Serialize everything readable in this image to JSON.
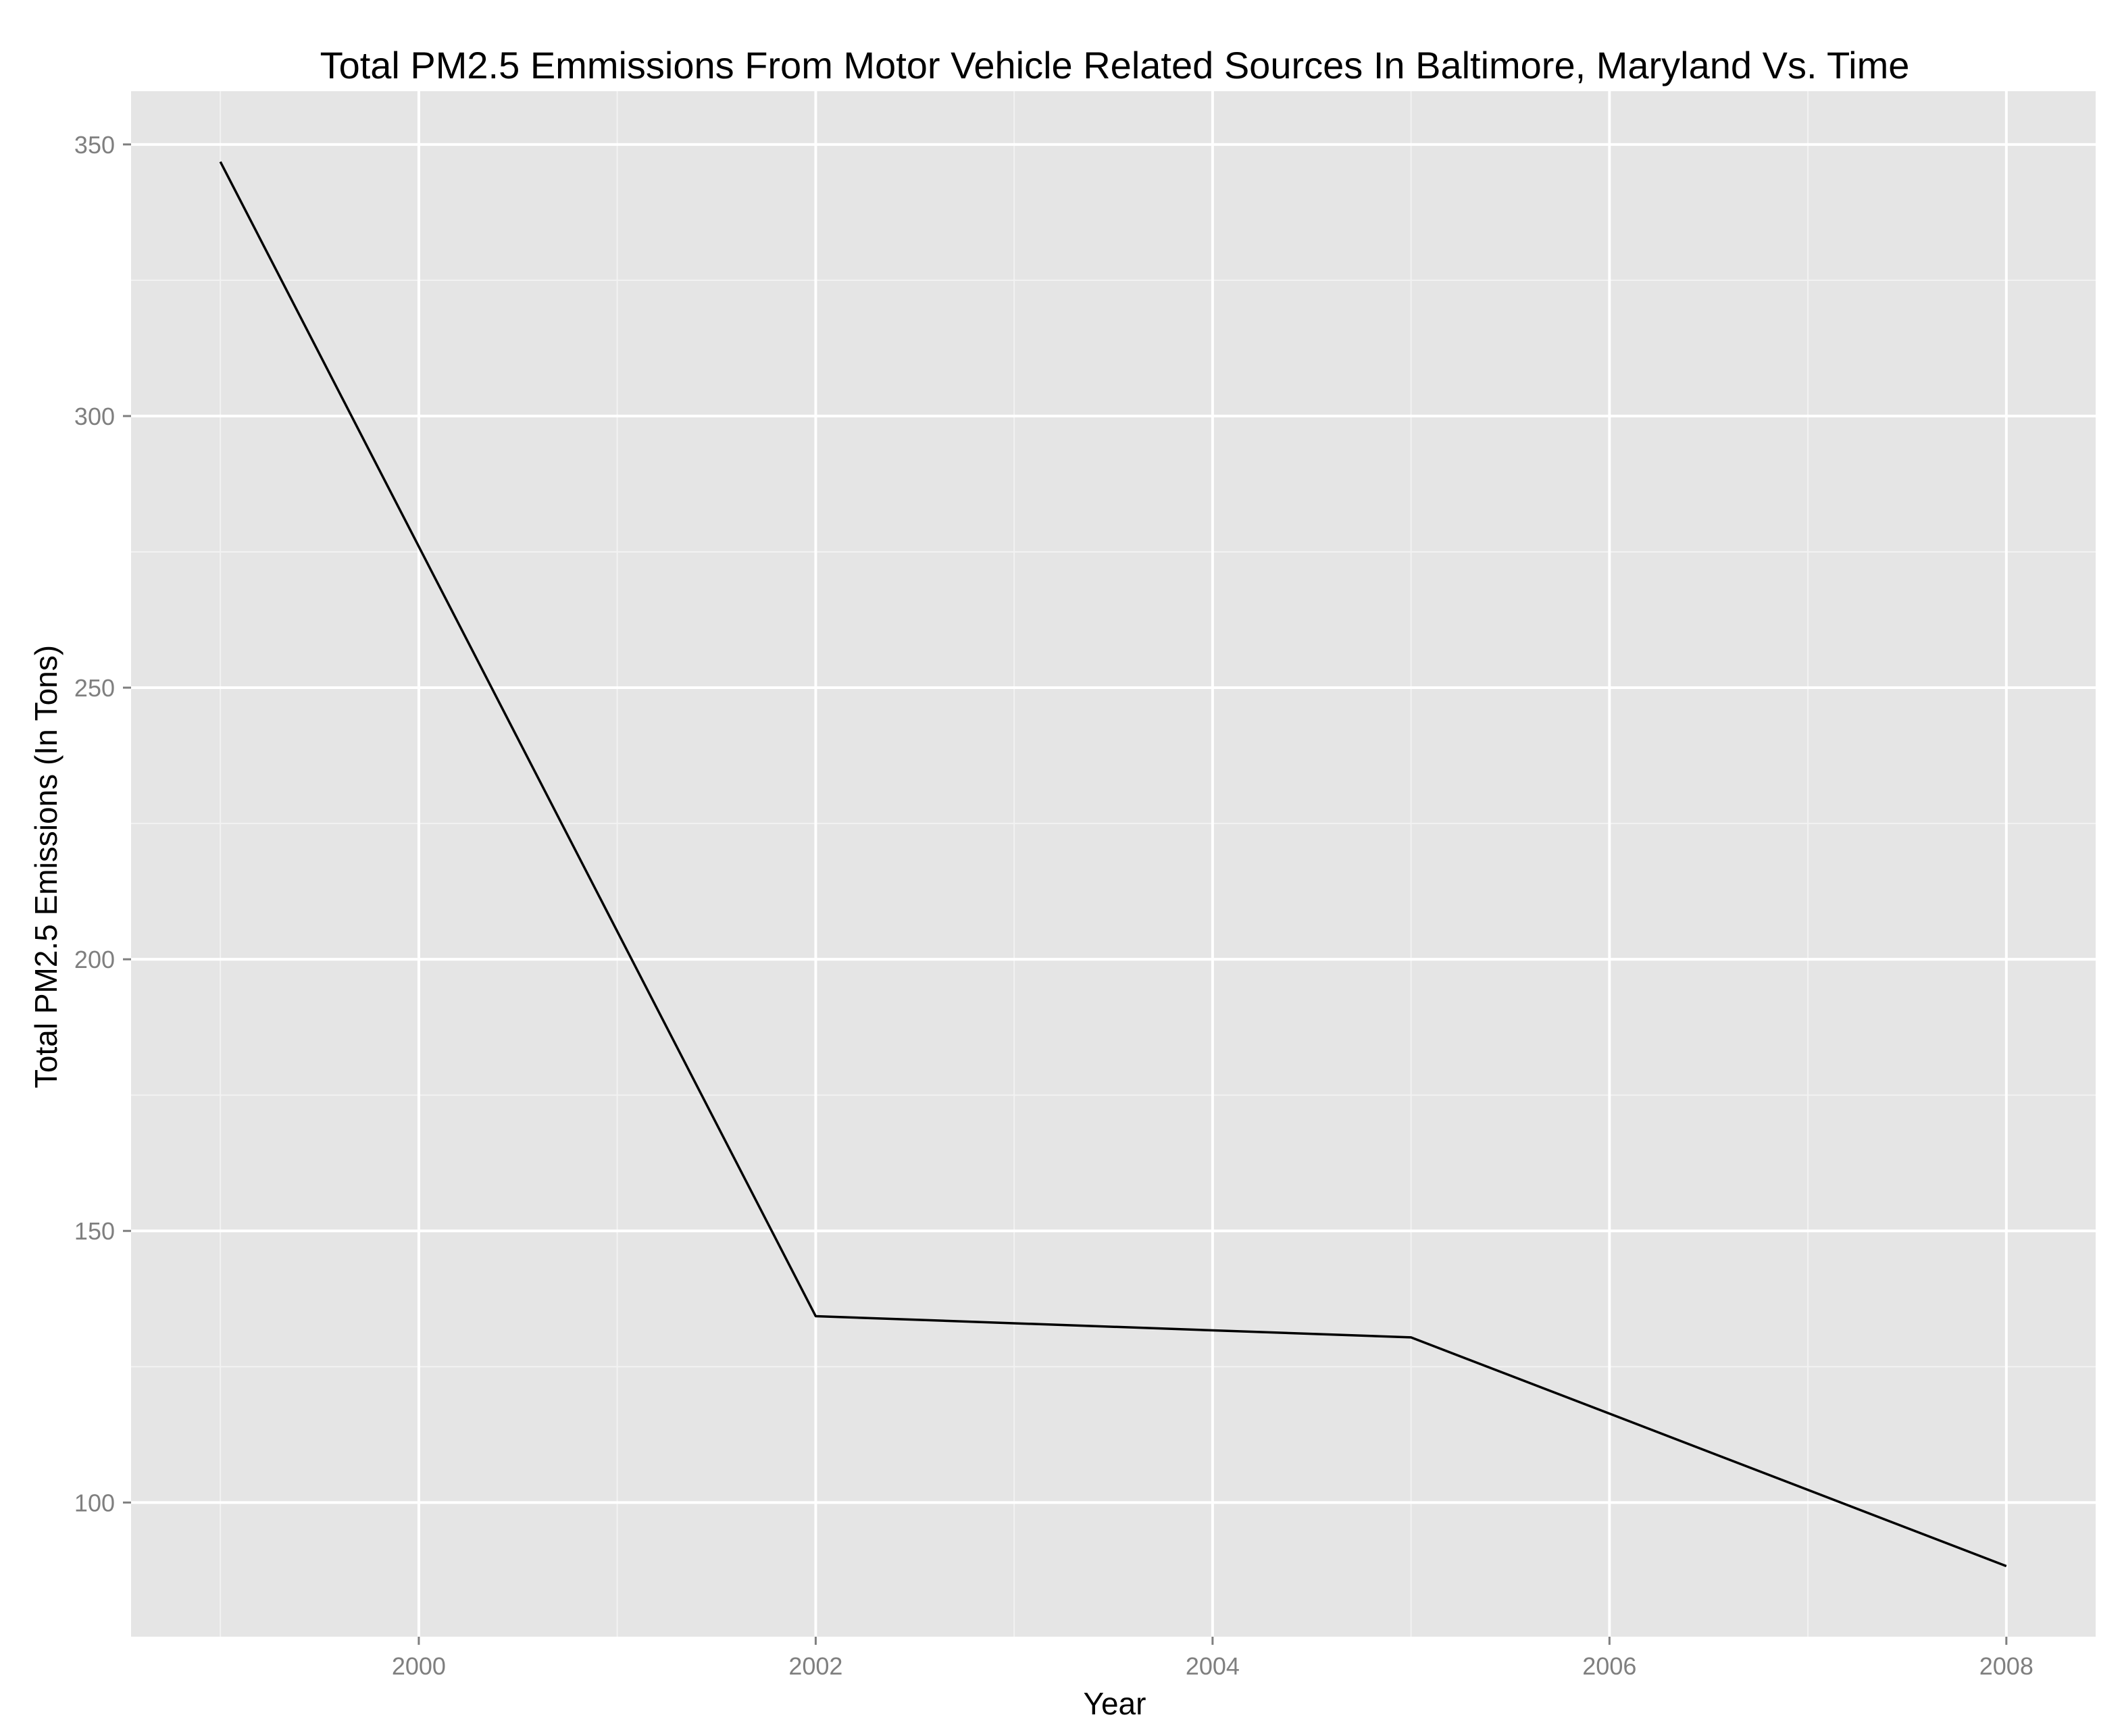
{
  "chart_data": {
    "type": "line",
    "title": "Total PM2.5 Emmissions From Motor Vehicle Related Sources In Baltimore, Maryland Vs. Time",
    "xlabel": "Year",
    "ylabel": "Total PM2.5 Emissions (In Tons)",
    "x": [
      1999,
      2002,
      2005,
      2008
    ],
    "series": [
      {
        "values": [
          346.8,
          134.3,
          130.4,
          88.3
        ]
      }
    ],
    "xlim": [
      1998.55,
      2008.45
    ],
    "ylim": [
      75.3,
      359.8
    ],
    "x_ticks": [
      2000,
      2002,
      2004,
      2006,
      2008
    ],
    "y_ticks": [
      100,
      150,
      200,
      250,
      300,
      350
    ],
    "x_tick_labels": [
      "2000",
      "2002",
      "2004",
      "2006",
      "2008"
    ],
    "y_tick_labels": [
      "100",
      "150",
      "200",
      "250",
      "300",
      "350"
    ],
    "x_minor": [
      1999,
      2001,
      2003,
      2005,
      2007
    ],
    "y_minor": [
      125,
      175,
      225,
      275,
      325
    ],
    "grid": true,
    "legend": "none",
    "colors": {
      "panel": "#e5e5e5",
      "grid": "#ffffff",
      "line": "#000000",
      "tick_text": "#7f7f7f"
    }
  }
}
